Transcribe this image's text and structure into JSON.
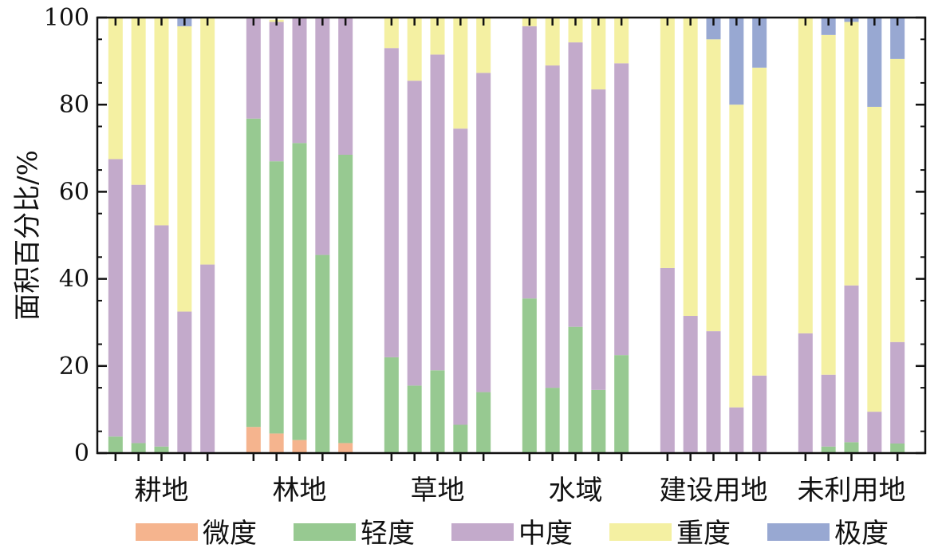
{
  "chart_data": {
    "type": "bar",
    "stacked": true,
    "ylabel": "面积百分比/%",
    "ylim": [
      0,
      100
    ],
    "yticks": [
      0,
      20,
      40,
      60,
      80,
      100
    ],
    "groups": [
      "耕地",
      "林地",
      "草地",
      "水域",
      "建设用地",
      "未利用地"
    ],
    "bars_per_group": 5,
    "series": [
      {
        "name": "微度",
        "color": "#f5b48e",
        "values": [
          0,
          0,
          0,
          0,
          0,
          6,
          4.5,
          3,
          0,
          2.3,
          0,
          0,
          0,
          0,
          0,
          0,
          0,
          0,
          0,
          0,
          0,
          0,
          0,
          0,
          0,
          0,
          0,
          0,
          0,
          0
        ]
      },
      {
        "name": "轻度",
        "color": "#97c991",
        "values": [
          3.8,
          2.3,
          1.5,
          0,
          0,
          70.8,
          62.5,
          68.2,
          45.5,
          66.2,
          22,
          15.5,
          19,
          6.5,
          14,
          35.5,
          15,
          29,
          14.5,
          22.5,
          0,
          0,
          0,
          0,
          0,
          0,
          1.5,
          2.5,
          0,
          2.2
        ]
      },
      {
        "name": "中度",
        "color": "#c3aacb",
        "values": [
          63.7,
          59.3,
          50.8,
          32.5,
          43.3,
          23.2,
          32,
          28.8,
          54.5,
          31.5,
          71,
          70,
          72.5,
          68,
          73.3,
          62.5,
          74,
          65.3,
          69,
          67,
          42.5,
          31.5,
          28,
          10.5,
          17.8,
          27.5,
          16.5,
          36,
          9.5,
          23.3
        ]
      },
      {
        "name": "重度",
        "color": "#f4f0a2",
        "values": [
          32.5,
          38.4,
          47.7,
          65.5,
          56.7,
          0,
          0.5,
          0,
          0,
          0,
          7,
          14.5,
          8.5,
          25.5,
          12.7,
          2,
          11,
          5.7,
          16.5,
          10.5,
          57.5,
          68.5,
          67,
          69.5,
          70.7,
          72.5,
          78,
          60.5,
          70,
          65
        ]
      },
      {
        "name": "极度",
        "color": "#98a8d2",
        "values": [
          0,
          0,
          0,
          2,
          0,
          0,
          0,
          0,
          0,
          0,
          0,
          0,
          0,
          0,
          0,
          0,
          0,
          0,
          0,
          0,
          0,
          0,
          5,
          20,
          11.5,
          0,
          4,
          1,
          20.5,
          9.5
        ]
      }
    ]
  }
}
